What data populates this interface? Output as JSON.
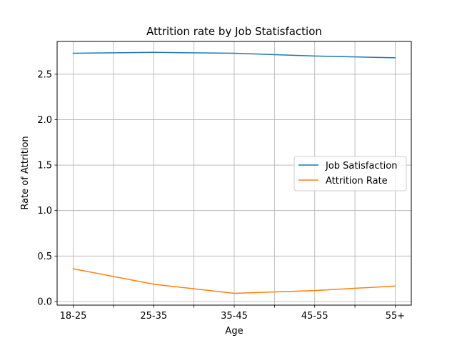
{
  "chart_data": {
    "type": "line",
    "title": "Attrition rate by Job Statisfaction",
    "xlabel": "Age",
    "ylabel": "Rate of Attrition",
    "categories": [
      "18-25",
      "25-35",
      "35-45",
      "45-55",
      "55+"
    ],
    "y_ticks": [
      "0.0",
      "0.5",
      "1.0",
      "1.5",
      "2.0",
      "2.5"
    ],
    "y_tick_values": [
      0.0,
      0.5,
      1.0,
      1.5,
      2.0,
      2.5
    ],
    "ylim": [
      -0.04,
      2.86
    ],
    "xlim": [
      -0.2,
      4.2
    ],
    "grid": true,
    "legend_position": "center-right",
    "series": [
      {
        "name": "Job Satisfaction",
        "color": "#1f77b4",
        "values": [
          2.73,
          2.74,
          2.73,
          2.7,
          2.68
        ]
      },
      {
        "name": "Attrition Rate",
        "color": "#ff7f0e",
        "values": [
          0.36,
          0.19,
          0.09,
          0.12,
          0.17
        ]
      }
    ]
  }
}
